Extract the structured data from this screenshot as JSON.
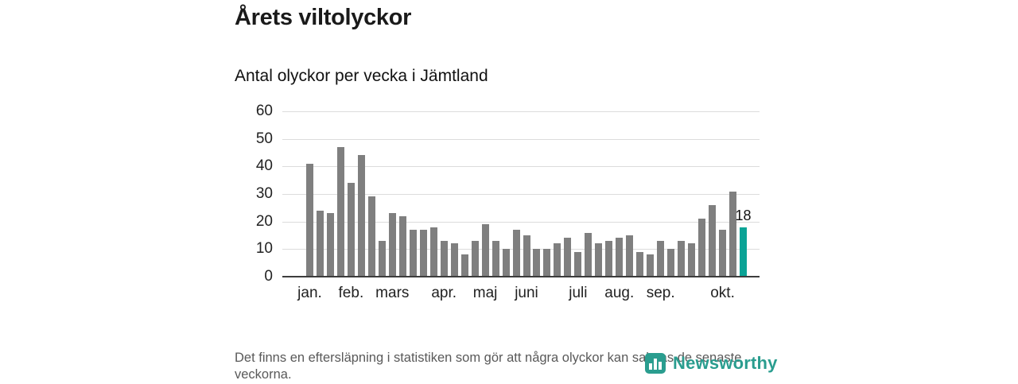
{
  "title": "Årets viltolyckor",
  "subtitle": "Antal olyckor per vecka i Jämtland",
  "footer": {
    "note": "Det finns en eftersläpning i statistiken som gör att några olyckor kan saknas de senaste veckorna.",
    "brand": "Newsworthy"
  },
  "colors": {
    "bar": "#7f7f7f",
    "highlight": "#0aa396",
    "brand": "#2a9d8f"
  },
  "chart_data": {
    "type": "bar",
    "title": "Årets viltolyckor",
    "subtitle": "Antal olyckor per vecka i Jämtland",
    "ylabel": "Antal olyckor per vecka",
    "xlabel": "",
    "ylim": [
      0,
      60
    ],
    "y_ticks": [
      0,
      10,
      20,
      30,
      40,
      50,
      60
    ],
    "grid": true,
    "values": [
      41,
      24,
      23,
      47,
      34,
      44,
      29,
      13,
      23,
      22,
      17,
      17,
      18,
      13,
      12,
      8,
      13,
      19,
      13,
      10,
      17,
      15,
      10,
      10,
      12,
      14,
      9,
      16,
      12,
      13,
      14,
      15,
      9,
      8,
      13,
      10,
      13,
      12,
      21,
      26,
      17,
      31,
      18
    ],
    "highlight_index": 42,
    "highlight_label": "18",
    "x_ticks": [
      {
        "label": "jan.",
        "index": 0
      },
      {
        "label": "feb.",
        "index": 4
      },
      {
        "label": "mars",
        "index": 8
      },
      {
        "label": "apr.",
        "index": 13
      },
      {
        "label": "maj",
        "index": 17
      },
      {
        "label": "juni",
        "index": 21
      },
      {
        "label": "juli",
        "index": 26
      },
      {
        "label": "aug.",
        "index": 30
      },
      {
        "label": "sep.",
        "index": 34
      },
      {
        "label": "okt.",
        "index": 40
      }
    ]
  }
}
